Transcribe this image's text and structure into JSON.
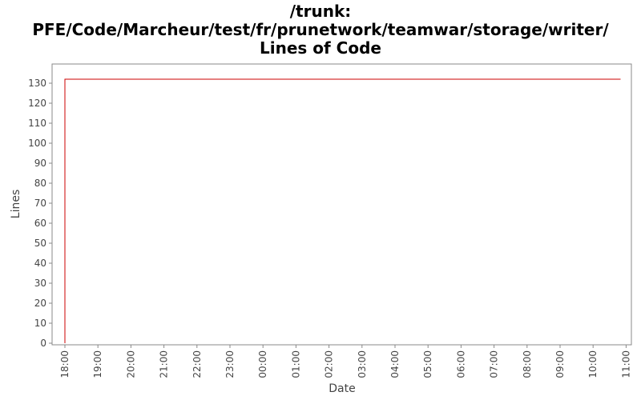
{
  "chart_data": {
    "type": "line",
    "title_lines": [
      "/trunk:",
      "PFE/Code/Marcheur/test/fr/prunetwork/teamwar/storage/writer/",
      "Lines of Code"
    ],
    "xlabel": "Date",
    "ylabel": "Lines",
    "x_ticks": [
      "18:00",
      "19:00",
      "20:00",
      "21:00",
      "22:00",
      "23:00",
      "00:00",
      "01:00",
      "02:00",
      "03:00",
      "04:00",
      "05:00",
      "06:00",
      "07:00",
      "08:00",
      "09:00",
      "10:00",
      "11:00"
    ],
    "xlim": [
      "18:00",
      "11:00"
    ],
    "y_ticks": [
      0,
      10,
      20,
      30,
      40,
      50,
      60,
      70,
      80,
      90,
      100,
      110,
      120,
      130
    ],
    "ylim": [
      0,
      135
    ],
    "grid": false,
    "series": [
      {
        "color": "#cc0000",
        "points": [
          {
            "x": "18:00",
            "y": 0
          },
          {
            "x": "18:00",
            "y": 132
          },
          {
            "x": "10:50",
            "y": 132
          }
        ]
      }
    ]
  }
}
